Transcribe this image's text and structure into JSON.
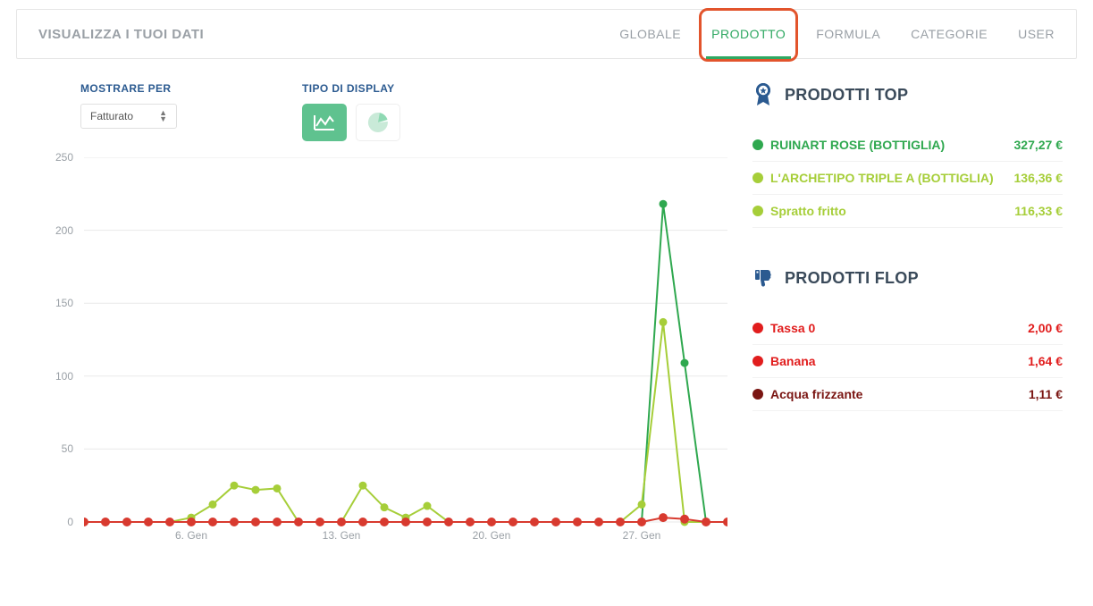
{
  "header": {
    "title": "VISUALIZZA I TUOI DATI",
    "tabs": [
      "GLOBALE",
      "PRODOTTO",
      "FORMULA",
      "CATEGORIE",
      "USER"
    ],
    "active_tab_index": 1,
    "highlight_color": "#e2542c"
  },
  "controls": {
    "show_by_label": "MOSTRARE PER",
    "show_by_value": "Fatturato",
    "display_type_label": "TIPO DI DISPLAY",
    "active_button_bg": "#5fc28f"
  },
  "chart": {
    "type": "line",
    "ylim": [
      0,
      250
    ],
    "yticks": [
      0,
      50,
      100,
      150,
      200,
      250
    ],
    "xtick_labels": [
      "6. Gen",
      "13. Gen",
      "20. Gen",
      "27. Gen"
    ],
    "xtick_indices": [
      5,
      12,
      19,
      26
    ],
    "x_count": 31,
    "grid_color": "#e9e9e9",
    "axis_label_color": "#9aa0a6",
    "series": [
      {
        "name": "series-green-dark",
        "color": "#2fa84f",
        "marker_radius": 4.5,
        "line_width": 2,
        "values": [
          0,
          0,
          0,
          0,
          0,
          0,
          0,
          0,
          0,
          0,
          0,
          0,
          0,
          0,
          0,
          0,
          0,
          0,
          0,
          0,
          0,
          0,
          0,
          0,
          0,
          0,
          0,
          218,
          109,
          0,
          0
        ]
      },
      {
        "name": "series-green-light",
        "color": "#a6ce39",
        "marker_radius": 4.5,
        "line_width": 2,
        "values": [
          0,
          0,
          0,
          0,
          0,
          3,
          12,
          25,
          22,
          23,
          0,
          0,
          0,
          25,
          10,
          3,
          11,
          0,
          0,
          0,
          0,
          0,
          0,
          0,
          0,
          0,
          12,
          137,
          0,
          0,
          0
        ]
      },
      {
        "name": "series-red",
        "color": "#d83a2f",
        "marker_radius": 5,
        "line_width": 2,
        "values": [
          0,
          0,
          0,
          0,
          0,
          0,
          0,
          0,
          0,
          0,
          0,
          0,
          0,
          0,
          0,
          0,
          0,
          0,
          0,
          0,
          0,
          0,
          0,
          0,
          0,
          0,
          0,
          3,
          2,
          0,
          0
        ]
      }
    ]
  },
  "top": {
    "title": "PRODOTTI TOP",
    "icon_color": "#2b5a90",
    "items": [
      {
        "label": "RUINART ROSE (BOTTIGLIA)",
        "value": "327,27 €",
        "color": "#2fa84f"
      },
      {
        "label": "L'ARCHETIPO TRIPLE A (BOTTIGLIA)",
        "value": "136,36 €",
        "color": "#a6ce39"
      },
      {
        "label": "Spratto fritto",
        "value": "116,33 €",
        "color": "#a6ce39"
      }
    ]
  },
  "flop": {
    "title": "PRODOTTI FLOP",
    "icon_color": "#2b5a90",
    "items": [
      {
        "label": "Tassa 0",
        "value": "2,00 €",
        "color": "#e11d1d"
      },
      {
        "label": "Banana",
        "value": "1,64 €",
        "color": "#e11d1d"
      },
      {
        "label": "Acqua frizzante",
        "value": "1,11 €",
        "color": "#7a1512"
      }
    ]
  }
}
